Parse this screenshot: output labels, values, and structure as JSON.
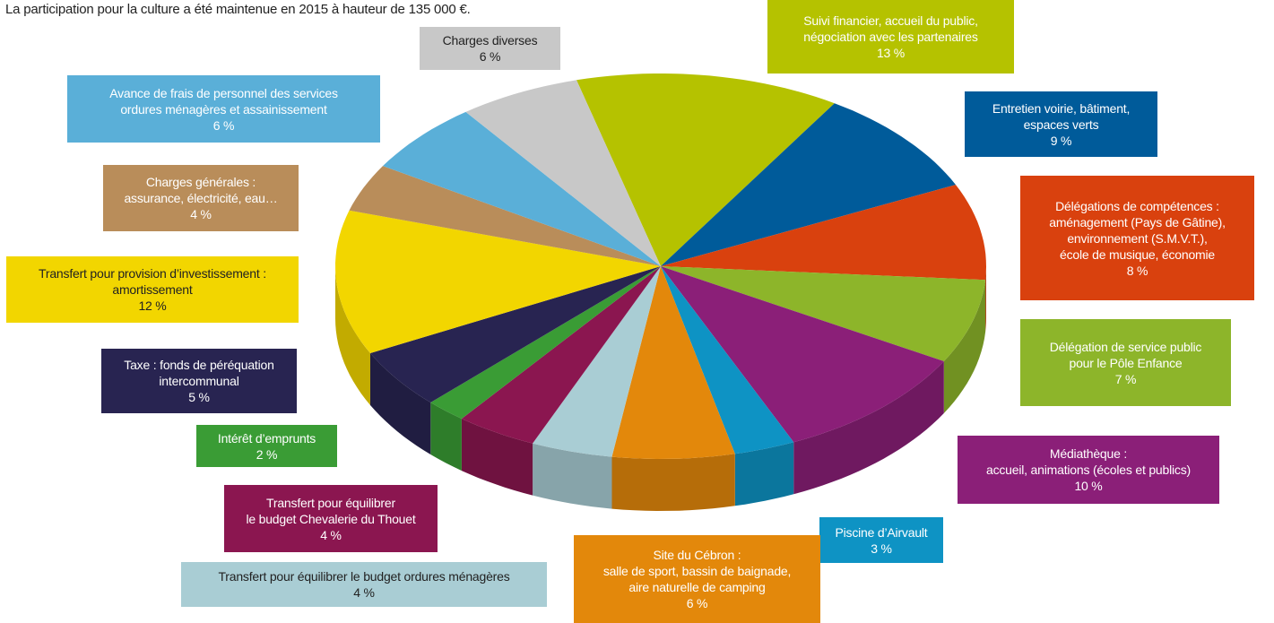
{
  "chart_data": {
    "type": "pie",
    "subtitle": "La participation pour la culture a été maintenue en 2015 à hauteur de 135 000 €.",
    "categories": [
      "Suivi financier, accueil du public,\nnégociation avec les partenaires",
      "Entretien voirie, bâtiment,\nespaces verts",
      "Délégations de compétences :\naménagement (Pays de Gâtine),\nenvironnement (S.M.V.T.),\nécole de musique, économie",
      "Délégation de service public\npour le Pôle Enfance",
      "Médiathèque :\naccueil, animations (écoles et publics)",
      "Piscine d’Airvault",
      "Site du Cébron :\nsalle de sport, bassin de baignade,\naire naturelle de camping",
      "Transfert pour équilibrer le budget ordures ménagères",
      "Transfert pour équilibrer\nle budget Chevalerie du Thouet",
      "Intérêt d’emprunts",
      "Taxe : fonds de péréquation\nintercommunal",
      "Transfert pour provision d’investissement :\namortissement",
      "Charges générales :\nassurance, électricité, eau…",
      "Avance de frais de personnel des services\nordures ménagères et assainissement",
      "Charges diverses"
    ],
    "values": [
      13,
      9,
      8,
      7,
      10,
      3,
      6,
      4,
      4,
      2,
      5,
      12,
      4,
      6,
      6
    ],
    "value_labels": [
      "13 %",
      "9 %",
      "8 %",
      "7 %",
      "10 %",
      "3 %",
      "6 %",
      "4 %",
      "4 %",
      "2 %",
      "5 %",
      "12 %",
      "4 %",
      "6 %",
      "6 %"
    ],
    "colors": [
      "#b5c200",
      "#005b9a",
      "#d9410e",
      "#8db52a",
      "#8b1f78",
      "#0e93c4",
      "#e3880b",
      "#a9cdd4",
      "#8b1650",
      "#3a9c35",
      "#282451",
      "#f2d600",
      "#b98d5a",
      "#5aafd8",
      "#c8c8c8"
    ]
  }
}
